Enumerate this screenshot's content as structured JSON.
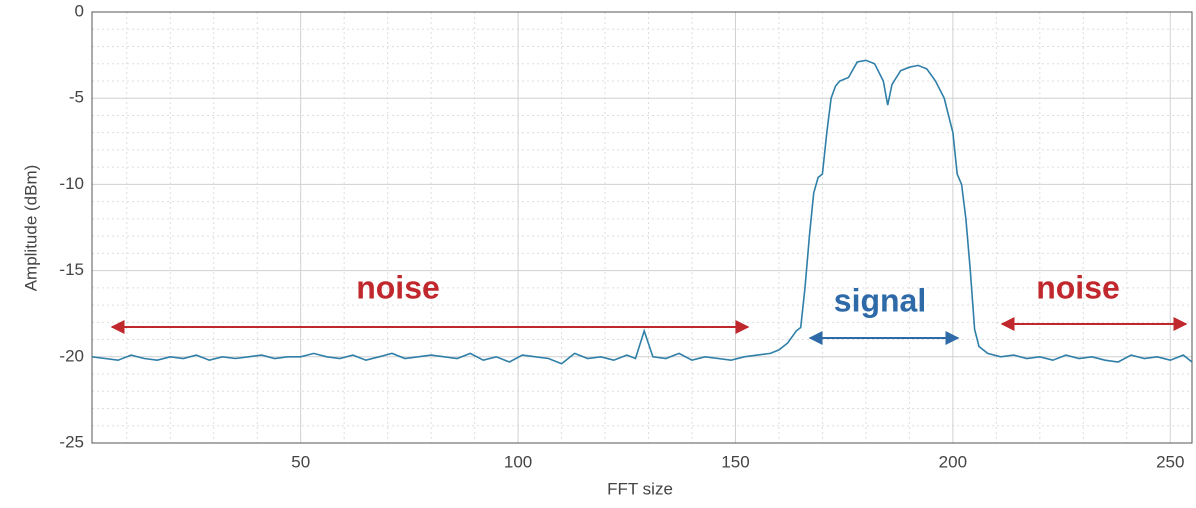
{
  "chart_data": {
    "type": "line",
    "x_label": "FFT size",
    "y_label": "Amplitude (dBm)",
    "x": [
      2,
      5,
      8,
      11,
      14,
      17,
      20,
      23,
      26,
      29,
      32,
      35,
      38,
      41,
      44,
      47,
      50,
      53,
      56,
      59,
      62,
      65,
      68,
      71,
      74,
      77,
      80,
      83,
      86,
      89,
      92,
      95,
      98,
      101,
      104,
      107,
      110,
      113,
      116,
      119,
      122,
      125,
      127,
      129,
      131,
      134,
      137,
      140,
      143,
      146,
      149,
      152,
      155,
      158,
      160,
      162,
      164,
      165,
      166,
      167,
      168,
      169,
      170,
      171,
      172,
      173,
      174,
      176,
      178,
      180,
      182,
      184,
      185,
      186,
      188,
      190,
      192,
      194,
      196,
      198,
      200,
      201,
      202,
      203,
      204,
      205,
      206,
      208,
      211,
      214,
      217,
      220,
      223,
      226,
      229,
      232,
      235,
      238,
      241,
      244,
      247,
      250,
      253,
      255
    ],
    "series": [
      {
        "color": "#2f7fa8",
        "values": [
          -20,
          -20.1,
          -20.2,
          -19.9,
          -20.1,
          -20.2,
          -20,
          -20.1,
          -19.9,
          -20.2,
          -20,
          -20.1,
          -20,
          -19.9,
          -20.1,
          -20,
          -20,
          -19.8,
          -20,
          -20.1,
          -19.9,
          -20.2,
          -20,
          -19.8,
          -20.1,
          -20,
          -19.9,
          -20,
          -20.1,
          -19.8,
          -20.2,
          -20,
          -20.3,
          -19.9,
          -20,
          -20.1,
          -20.4,
          -19.8,
          -20.1,
          -20,
          -20.2,
          -19.9,
          -20.1,
          -18.5,
          -20,
          -20.1,
          -19.8,
          -20.2,
          -20,
          -20.1,
          -20.2,
          -20,
          -19.9,
          -19.8,
          -19.6,
          -19.2,
          -18.5,
          -18.3,
          -16,
          -13,
          -10.5,
          -9.6,
          -9.4,
          -7,
          -5,
          -4.3,
          -4,
          -3.8,
          -2.9,
          -2.8,
          -3,
          -4,
          -5.4,
          -4.2,
          -3.4,
          -3.2,
          -3.1,
          -3.3,
          -4,
          -5,
          -7,
          -9.4,
          -10,
          -12,
          -15,
          -18.4,
          -19.4,
          -19.8,
          -20,
          -19.9,
          -20.1,
          -20,
          -20.2,
          -19.9,
          -20.1,
          -20,
          -20.2,
          -20.3,
          -19.9,
          -20.1,
          -20,
          -20.2,
          -19.9,
          -20.3
        ]
      }
    ],
    "xlim": [
      2,
      255
    ],
    "ylim": [
      -25,
      0
    ],
    "xticks": [
      50,
      100,
      150,
      200,
      250
    ],
    "yticks": [
      0,
      -5,
      -10,
      -15,
      -20,
      -25
    ],
    "grid": true,
    "annotations": [
      {
        "text": "noise",
        "color": "#c0282d"
      },
      {
        "text": "signal",
        "color": "#2e6aa8"
      },
      {
        "text": "noise",
        "color": "#c0282d"
      }
    ]
  }
}
